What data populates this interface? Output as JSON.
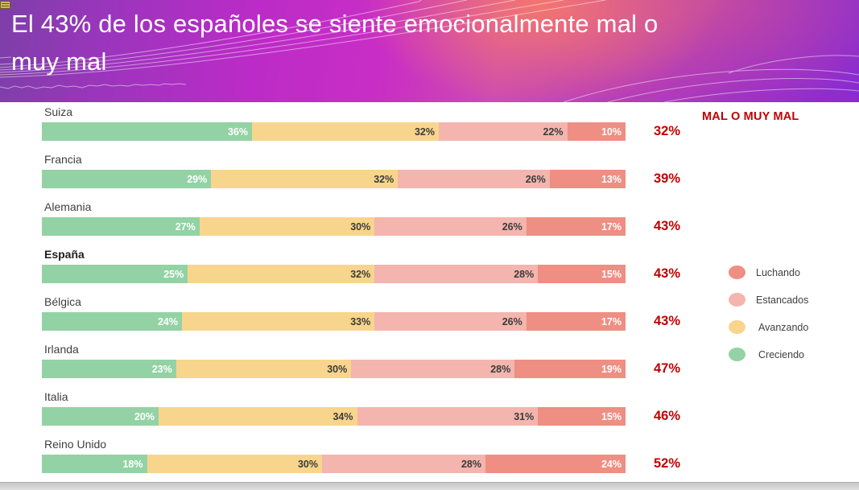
{
  "header": {
    "lines": [
      "El 43% de los españoles se siente emocionalmente mal o",
      "muy mal"
    ],
    "corner_icon": "list-icon"
  },
  "chart_data": {
    "type": "bar",
    "variant": "horizontal-stacked",
    "title": "El 43% de los españoles se siente emocionalmente mal o muy mal",
    "categories": [
      "Suiza",
      "Francia",
      "Alemania",
      "España",
      "Bélgica",
      "Irlanda",
      "Italia",
      "Reino Unido"
    ],
    "highlight_category": "España",
    "xlim": [
      0,
      100
    ],
    "value_suffix": "%",
    "grid": false,
    "series": [
      {
        "name": "Creciendo",
        "color": "#93d2a4",
        "label_color": "#ffffff",
        "values": [
          36,
          29,
          27,
          25,
          24,
          23,
          20,
          18
        ]
      },
      {
        "name": "Avanzando",
        "color": "#f8d58c",
        "label_color": "#3b3b3b",
        "values": [
          32,
          32,
          30,
          32,
          33,
          30,
          34,
          30
        ]
      },
      {
        "name": "Estancados",
        "color": "#f3b5ae",
        "label_color": "#3b3b3b",
        "values": [
          22,
          26,
          26,
          28,
          26,
          28,
          31,
          28
        ]
      },
      {
        "name": "Luchando",
        "color": "#ef8e83",
        "label_color": "#ffffff",
        "values": [
          10,
          13,
          17,
          15,
          17,
          19,
          15,
          24
        ]
      }
    ],
    "totals_column": {
      "header": "MAL O MUY MAL",
      "values": [
        32,
        39,
        43,
        43,
        43,
        47,
        46,
        52
      ],
      "color": "#c00000"
    },
    "legend": {
      "position": "right",
      "items": [
        {
          "label": "Luchando",
          "color": "#ef8e83"
        },
        {
          "label": "Estancados",
          "color": "#f3b5ae"
        },
        {
          "label": "Avanzando",
          "color": "#f8d58c"
        },
        {
          "label": "Creciendo",
          "color": "#93d2a4"
        }
      ]
    }
  },
  "colors": {
    "accent_red": "#c00000",
    "text_gray": "#3f3f3f",
    "header_gradient": [
      "#7d3fa8",
      "#bc2bc7",
      "#f6786c",
      "#8a2bd0"
    ],
    "bottom_strip": "#d3d3d3"
  }
}
